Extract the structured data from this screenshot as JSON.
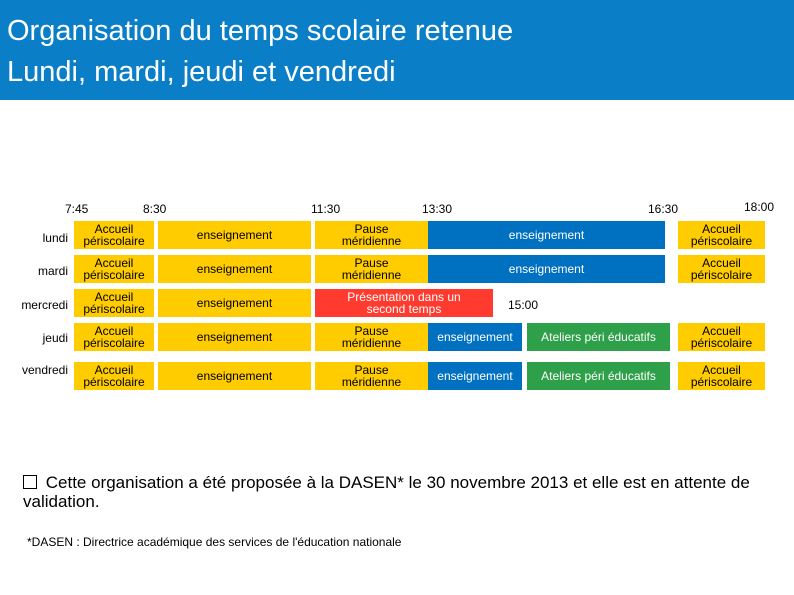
{
  "header": {
    "title_line1": "Organisation du temps scolaire retenue",
    "title_line2": "Lundi, mardi, jeudi et vendredi"
  },
  "colors": {
    "header_bg": "#0a7fc8",
    "accueil": "#ffcc00",
    "enseignement": "#0070c0",
    "presentation": "#ff3b2f",
    "ateliers": "#2fa04a"
  },
  "times": {
    "t0745": "7:45",
    "t0830": "8:30",
    "t1130": "11:30",
    "t1330": "13:30",
    "t1630": "16:30",
    "t1800": "18:00",
    "t1500": "15:00"
  },
  "days": {
    "lundi": "lundi",
    "mardi": "mardi",
    "mercredi": "mercredi",
    "jeudi": "jeudi",
    "vendredi": "vendredi"
  },
  "schedule": {
    "lundi": {
      "morning_care": "Accueil\npériscolaire",
      "morning_teaching": "enseignement",
      "lunch": "Pause\nméridienne",
      "afternoon_teaching": "enseignement",
      "evening_care": "Accueil\npériscolaire"
    },
    "mardi": {
      "morning_care": "Accueil\npériscolaire",
      "morning_teaching": "enseignement",
      "lunch": "Pause\nméridienne",
      "afternoon_teaching": "enseignement",
      "evening_care": "Accueil\npériscolaire"
    },
    "mercredi": {
      "morning_care": "Accueil\npériscolaire",
      "morning_teaching": "enseignement",
      "presentation": "Présentation dans un\nsecond temps"
    },
    "jeudi": {
      "morning_care": "Accueil\npériscolaire",
      "morning_teaching": "enseignement",
      "lunch": "Pause\nméridienne",
      "afternoon_teaching": "enseignement",
      "ateliers": "Ateliers péri éducatifs",
      "evening_care": "Accueil\npériscolaire"
    },
    "vendredi": {
      "morning_care": "Accueil\npériscolaire",
      "morning_teaching": "enseignement",
      "lunch": "Pause\nméridienne",
      "afternoon_teaching": "enseignement",
      "ateliers": "Ateliers péri éducatifs",
      "evening_care": "Accueil\npériscolaire"
    }
  },
  "note": {
    "text": "Cette organisation a été proposée à la DASEN* le 30 novembre 2013 et elle est en attente de validation."
  },
  "footnote": "*DASEN : Directrice académique des services de l'éducation nationale"
}
